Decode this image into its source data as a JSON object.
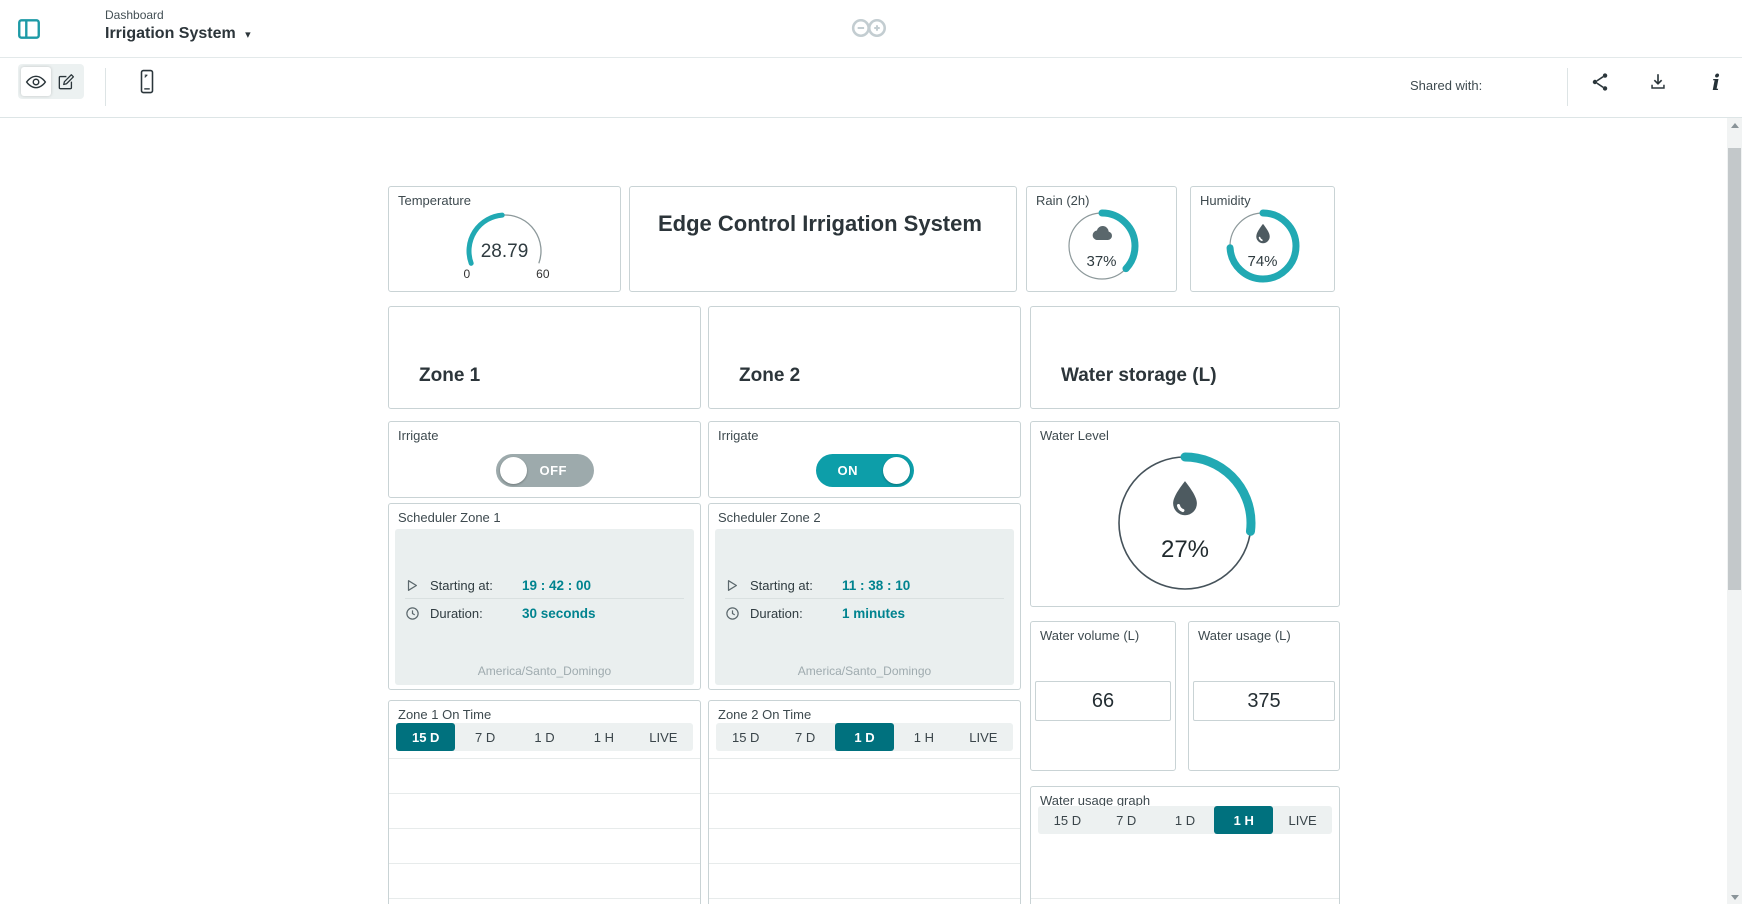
{
  "header": {
    "breadcrumb": "Dashboard",
    "title": "Irrigation System"
  },
  "toolbar": {
    "shared_with": "Shared with:"
  },
  "colors": {
    "accent": "#21a9b3",
    "accent_dark": "#00717e",
    "teal_text": "#00838f",
    "toggle_on": "#0d9ea9",
    "toggle_off": "#9daaac",
    "header_icon": "#1d9aa6"
  },
  "widgets": {
    "temperature": {
      "label": "Temperature",
      "value": 28.79,
      "min": 0,
      "max": 60
    },
    "title": {
      "text": "Edge Control Irrigation System"
    },
    "rain": {
      "label": "Rain (2h)",
      "value": "37%",
      "percent": 37
    },
    "humidity": {
      "label": "Humidity",
      "value": "74%",
      "percent": 74
    },
    "zone1": {
      "header": "Zone 1"
    },
    "zone2": {
      "header": "Zone 2"
    },
    "water_storage": {
      "header": "Water storage (L)"
    },
    "irrigate_zone1": {
      "label": "Irrigate",
      "state": "OFF"
    },
    "irrigate_zone2": {
      "label": "Irrigate",
      "state": "ON"
    },
    "scheduler_zone1": {
      "label": "Scheduler Zone 1",
      "starting_label": "Starting at:",
      "starting_value": "19 : 42 : 00",
      "duration_label": "Duration:",
      "duration_value": "30 seconds",
      "timezone": "America/Santo_Domingo"
    },
    "scheduler_zone2": {
      "label": "Scheduler Zone 2",
      "starting_label": "Starting at:",
      "starting_value": "11 : 38 : 10",
      "duration_label": "Duration:",
      "duration_value": "1 minutes",
      "timezone": "America/Santo_Domingo"
    },
    "zone1_on_time": {
      "label": "Zone 1 On Time",
      "ranges": [
        "15 D",
        "7 D",
        "1 D",
        "1 H",
        "LIVE"
      ],
      "selected": "15 D"
    },
    "zone2_on_time": {
      "label": "Zone 2 On Time",
      "ranges": [
        "15 D",
        "7 D",
        "1 D",
        "1 H",
        "LIVE"
      ],
      "selected": "1 D"
    },
    "water_level": {
      "label": "Water Level",
      "value": "27%",
      "percent": 27
    },
    "water_volume": {
      "label": "Water volume (L)",
      "value": 66
    },
    "water_usage": {
      "label": "Water usage (L)",
      "value": 375
    },
    "water_usage_graph": {
      "label": "Water usage graph",
      "ranges": [
        "15 D",
        "7 D",
        "1 D",
        "1 H",
        "LIVE"
      ],
      "selected": "1 H"
    }
  },
  "chart_data": [
    {
      "type": "gauge",
      "title": "Temperature",
      "value": 28.79,
      "min": 0,
      "max": 60
    },
    {
      "type": "gauge",
      "title": "Rain (2h)",
      "value": 37,
      "min": 0,
      "max": 100,
      "unit": "%"
    },
    {
      "type": "gauge",
      "title": "Humidity",
      "value": 74,
      "min": 0,
      "max": 100,
      "unit": "%"
    },
    {
      "type": "gauge",
      "title": "Water Level",
      "value": 27,
      "min": 0,
      "max": 100,
      "unit": "%"
    },
    {
      "type": "line",
      "title": "Zone 1 On Time",
      "series": [],
      "x_range": "15 D",
      "grid": true
    },
    {
      "type": "line",
      "title": "Zone 2 On Time",
      "series": [],
      "x_range": "1 D",
      "grid": true
    },
    {
      "type": "line",
      "title": "Water usage graph",
      "series": [],
      "x_range": "1 H",
      "grid": true
    }
  ]
}
